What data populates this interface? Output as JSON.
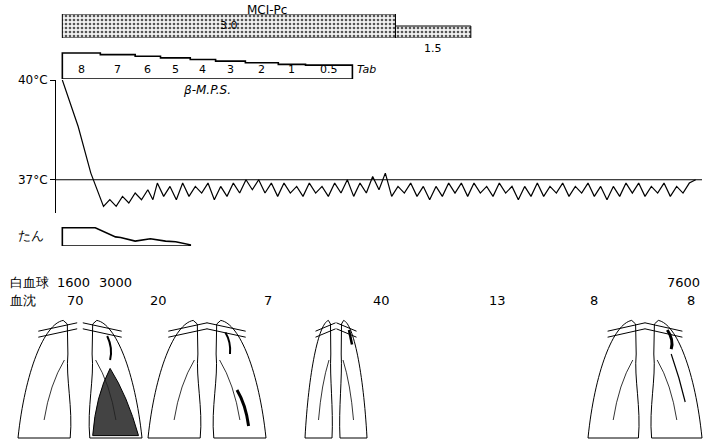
{
  "chart_data": [
    {
      "type": "bar",
      "title": "MCI-Pc",
      "starts": [
        0,
        52.6
      ],
      "ends": [
        52.6,
        64.5
      ],
      "values": [
        3.0,
        1.5
      ],
      "value_labels": [
        "3.0",
        "1.5"
      ],
      "ylim": [
        0,
        3
      ],
      "marker": "dotted",
      "data_labels": true,
      "tick_labels": false
    },
    {
      "type": "step",
      "title": "β-M.P.S.",
      "starts": [
        0,
        6,
        11.5,
        15.5,
        20.2,
        24.2,
        28.9,
        34.1,
        38.4
      ],
      "ends": [
        6,
        11.5,
        15.5,
        20.2,
        24.2,
        28.9,
        34.1,
        38.4,
        45.8
      ],
      "values": [
        8,
        7,
        6,
        5,
        4,
        3,
        2,
        1,
        0.5
      ],
      "unit": "Tab",
      "ylim": [
        -8,
        8.6
      ],
      "data_labels": true,
      "tick_labels": false
    },
    {
      "type": "line",
      "color": "#000000",
      "x": [
        0,
        2.5,
        4.5,
        6.5,
        7.5,
        8.5,
        9.5,
        10.5,
        11.5,
        12.5,
        13.5,
        14.3,
        15,
        16,
        17,
        18,
        19,
        20,
        21,
        22,
        23,
        24,
        25,
        26,
        27,
        28,
        29,
        30,
        31,
        32,
        33,
        34,
        35,
        36,
        37,
        38,
        39,
        40,
        41,
        42,
        43,
        44,
        45,
        46,
        47,
        48,
        49,
        50,
        51,
        52,
        53,
        54,
        55,
        56,
        57,
        58,
        59,
        60,
        61,
        62,
        63,
        64,
        65,
        66,
        67,
        68,
        69,
        70,
        71,
        72,
        73,
        74,
        75,
        76,
        77,
        78,
        79,
        80,
        81,
        82,
        83,
        84,
        85,
        86,
        87,
        88,
        89,
        90,
        91,
        92,
        93,
        94,
        95,
        96,
        97,
        98,
        99,
        100
      ],
      "values": [
        40,
        38.6,
        37.2,
        36.2,
        36.4,
        36.2,
        36.5,
        36.3,
        36.6,
        36.4,
        36.7,
        36.4,
        36.9,
        36.5,
        36.8,
        36.4,
        36.9,
        36.5,
        36.8,
        36.6,
        36.9,
        36.4,
        36.8,
        36.5,
        36.9,
        36.6,
        37.0,
        36.7,
        37.0,
        36.6,
        36.9,
        36.5,
        36.9,
        36.6,
        36.8,
        36.5,
        36.9,
        36.6,
        36.8,
        36.5,
        36.9,
        36.6,
        37.0,
        36.5,
        36.9,
        36.6,
        37.1,
        36.7,
        37.2,
        36.5,
        36.8,
        36.6,
        36.9,
        36.5,
        36.8,
        36.4,
        36.8,
        36.5,
        36.9,
        36.6,
        36.9,
        36.5,
        36.9,
        36.6,
        36.8,
        36.5,
        36.9,
        36.6,
        36.8,
        36.4,
        36.8,
        36.5,
        36.9,
        36.5,
        36.8,
        36.6,
        36.9,
        36.5,
        36.8,
        36.6,
        36.9,
        36.5,
        36.8,
        36.4,
        36.8,
        36.5,
        36.9,
        36.6,
        36.9,
        36.5,
        36.8,
        36.6,
        36.9,
        36.5,
        36.8,
        36.6,
        36.9,
        37.0
      ],
      "xlim": [
        -1,
        101
      ],
      "ylim": [
        36,
        40
      ],
      "yticks": [
        {
          "value": 40,
          "label": "40°C"
        },
        {
          "value": 37,
          "label": "37°C"
        }
      ],
      "reference_line": 37,
      "tick_labels": "y"
    },
    {
      "type": "area",
      "title": "たん",
      "x": [
        0,
        5.2,
        8.4,
        9.2,
        11.5,
        13.9,
        16.3,
        17.9,
        20.2
      ],
      "values": [
        3,
        3,
        1.5,
        1.4,
        0.8,
        1.2,
        0.8,
        0.7,
        0.2
      ],
      "ylim": [
        0,
        3.3
      ],
      "tick_labels": false
    },
    {
      "type": "text",
      "title": "白血球",
      "x": [
        1.7,
        8.4,
        98.1
      ],
      "values": [
        1600,
        3000,
        7600
      ],
      "data_labels": true,
      "tick_labels": false
    },
    {
      "type": "text",
      "title": "血沈",
      "x": [
        2.1,
        15.2,
        32.5,
        50.4,
        68.7,
        83.9,
        99.2
      ],
      "values": [
        70,
        20,
        7,
        40,
        13,
        8,
        8
      ],
      "data_labels": true,
      "tick_labels": false
    }
  ]
}
